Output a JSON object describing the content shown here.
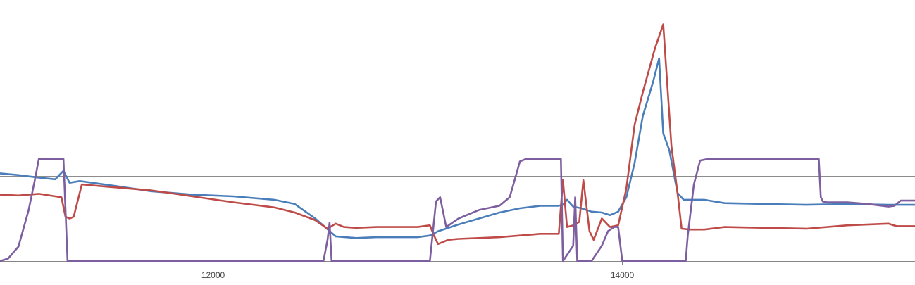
{
  "chart_data": {
    "type": "line",
    "title": "",
    "xlabel": "",
    "ylabel": "",
    "xlim": [
      10960,
      15430
    ],
    "ylim": [
      0,
      3
    ],
    "grid": true,
    "legend": "none",
    "x_ticks": [
      12000,
      14000
    ],
    "x_tick_labels": [
      "12000",
      "14000"
    ],
    "y_gridlines": [
      0,
      1,
      2,
      3
    ],
    "series": [
      {
        "color": "#4a7ebb",
        "points": [
          [
            10960,
            1.03
          ],
          [
            11050,
            1.01
          ],
          [
            11150,
            0.98
          ],
          [
            11230,
            0.96
          ],
          [
            11270,
            1.06
          ],
          [
            11300,
            0.92
          ],
          [
            11350,
            0.94
          ],
          [
            11500,
            0.89
          ],
          [
            11700,
            0.82
          ],
          [
            11900,
            0.78
          ],
          [
            12100,
            0.76
          ],
          [
            12300,
            0.72
          ],
          [
            12400,
            0.67
          ],
          [
            12500,
            0.5
          ],
          [
            12600,
            0.29
          ],
          [
            12700,
            0.27
          ],
          [
            12800,
            0.28
          ],
          [
            12900,
            0.28
          ],
          [
            13000,
            0.28
          ],
          [
            13060,
            0.3
          ],
          [
            13100,
            0.35
          ],
          [
            13200,
            0.43
          ],
          [
            13300,
            0.5
          ],
          [
            13400,
            0.57
          ],
          [
            13500,
            0.62
          ],
          [
            13600,
            0.65
          ],
          [
            13650,
            0.65
          ],
          [
            13690,
            0.65
          ],
          [
            13710,
            0.66
          ],
          [
            13730,
            0.72
          ],
          [
            13760,
            0.64
          ],
          [
            13800,
            0.62
          ],
          [
            13850,
            0.58
          ],
          [
            13900,
            0.57
          ],
          [
            13940,
            0.54
          ],
          [
            13980,
            0.58
          ],
          [
            14020,
            0.75
          ],
          [
            14060,
            1.15
          ],
          [
            14100,
            1.7
          ],
          [
            14150,
            2.1
          ],
          [
            14180,
            2.38
          ],
          [
            14200,
            1.5
          ],
          [
            14230,
            1.3
          ],
          [
            14270,
            0.8
          ],
          [
            14300,
            0.72
          ],
          [
            14400,
            0.72
          ],
          [
            14500,
            0.68
          ],
          [
            14700,
            0.67
          ],
          [
            14900,
            0.66
          ],
          [
            15100,
            0.67
          ],
          [
            15300,
            0.66
          ],
          [
            15430,
            0.66
          ]
        ]
      },
      {
        "color": "#be4b48",
        "points": [
          [
            10960,
            0.78
          ],
          [
            11050,
            0.77
          ],
          [
            11150,
            0.79
          ],
          [
            11230,
            0.76
          ],
          [
            11260,
            0.75
          ],
          [
            11280,
            0.52
          ],
          [
            11300,
            0.5
          ],
          [
            11320,
            0.52
          ],
          [
            11360,
            0.9
          ],
          [
            11500,
            0.87
          ],
          [
            11700,
            0.83
          ],
          [
            11900,
            0.76
          ],
          [
            12100,
            0.69
          ],
          [
            12300,
            0.63
          ],
          [
            12400,
            0.57
          ],
          [
            12500,
            0.48
          ],
          [
            12560,
            0.38
          ],
          [
            12600,
            0.44
          ],
          [
            12640,
            0.4
          ],
          [
            12700,
            0.39
          ],
          [
            12800,
            0.4
          ],
          [
            12900,
            0.4
          ],
          [
            13000,
            0.4
          ],
          [
            13060,
            0.42
          ],
          [
            13080,
            0.3
          ],
          [
            13100,
            0.2
          ],
          [
            13150,
            0.25
          ],
          [
            13200,
            0.26
          ],
          [
            13400,
            0.28
          ],
          [
            13600,
            0.32
          ],
          [
            13690,
            0.32
          ],
          [
            13710,
            0.95
          ],
          [
            13730,
            0.4
          ],
          [
            13760,
            0.42
          ],
          [
            13790,
            0.46
          ],
          [
            13810,
            0.95
          ],
          [
            13840,
            0.35
          ],
          [
            13860,
            0.25
          ],
          [
            13900,
            0.5
          ],
          [
            13940,
            0.4
          ],
          [
            13980,
            0.42
          ],
          [
            14020,
            0.85
          ],
          [
            14060,
            1.6
          ],
          [
            14100,
            1.98
          ],
          [
            14160,
            2.5
          ],
          [
            14200,
            2.78
          ],
          [
            14240,
            1.35
          ],
          [
            14270,
            0.8
          ],
          [
            14290,
            0.38
          ],
          [
            14330,
            0.37
          ],
          [
            14400,
            0.37
          ],
          [
            14500,
            0.4
          ],
          [
            14700,
            0.39
          ],
          [
            14900,
            0.38
          ],
          [
            15100,
            0.42
          ],
          [
            15300,
            0.44
          ],
          [
            15340,
            0.41
          ],
          [
            15430,
            0.41
          ]
        ]
      },
      {
        "color": "#7d5fa0",
        "points": [
          [
            10960,
            0.0
          ],
          [
            11000,
            0.03
          ],
          [
            11050,
            0.17
          ],
          [
            11100,
            0.6
          ],
          [
            11130,
            0.95
          ],
          [
            11150,
            1.2
          ],
          [
            11180,
            1.2
          ],
          [
            11250,
            1.2
          ],
          [
            11270,
            1.2
          ],
          [
            11290,
            0.0
          ],
          [
            11500,
            0.0
          ],
          [
            11800,
            0.0
          ],
          [
            12000,
            0.0
          ],
          [
            12300,
            0.0
          ],
          [
            12500,
            0.0
          ],
          [
            12540,
            0.0
          ],
          [
            12560,
            0.25
          ],
          [
            12570,
            0.45
          ],
          [
            12580,
            0.0
          ],
          [
            13000,
            0.0
          ],
          [
            13060,
            0.0
          ],
          [
            13090,
            0.7
          ],
          [
            13110,
            0.75
          ],
          [
            13140,
            0.4
          ],
          [
            13200,
            0.5
          ],
          [
            13300,
            0.6
          ],
          [
            13400,
            0.65
          ],
          [
            13450,
            0.75
          ],
          [
            13480,
            1.0
          ],
          [
            13500,
            1.17
          ],
          [
            13530,
            1.2
          ],
          [
            13600,
            1.2
          ],
          [
            13700,
            1.2
          ],
          [
            13710,
            0.0
          ],
          [
            13760,
            0.18
          ],
          [
            13770,
            0.75
          ],
          [
            13780,
            0.0
          ],
          [
            13800,
            0.0
          ],
          [
            13850,
            0.0
          ],
          [
            13900,
            0.18
          ],
          [
            13930,
            0.35
          ],
          [
            13960,
            0.4
          ],
          [
            13980,
            0.4
          ],
          [
            14000,
            0.0
          ],
          [
            14100,
            0.0
          ],
          [
            14200,
            0.0
          ],
          [
            14300,
            0.0
          ],
          [
            14310,
            0.0
          ],
          [
            14320,
            0.3
          ],
          [
            14350,
            0.9
          ],
          [
            14380,
            1.18
          ],
          [
            14420,
            1.2
          ],
          [
            14600,
            1.2
          ],
          [
            14800,
            1.2
          ],
          [
            14960,
            1.2
          ],
          [
            14970,
            0.75
          ],
          [
            14980,
            0.7
          ],
          [
            15000,
            0.69
          ],
          [
            15100,
            0.69
          ],
          [
            15200,
            0.67
          ],
          [
            15300,
            0.64
          ],
          [
            15330,
            0.65
          ],
          [
            15360,
            0.71
          ],
          [
            15430,
            0.71
          ]
        ]
      }
    ]
  }
}
